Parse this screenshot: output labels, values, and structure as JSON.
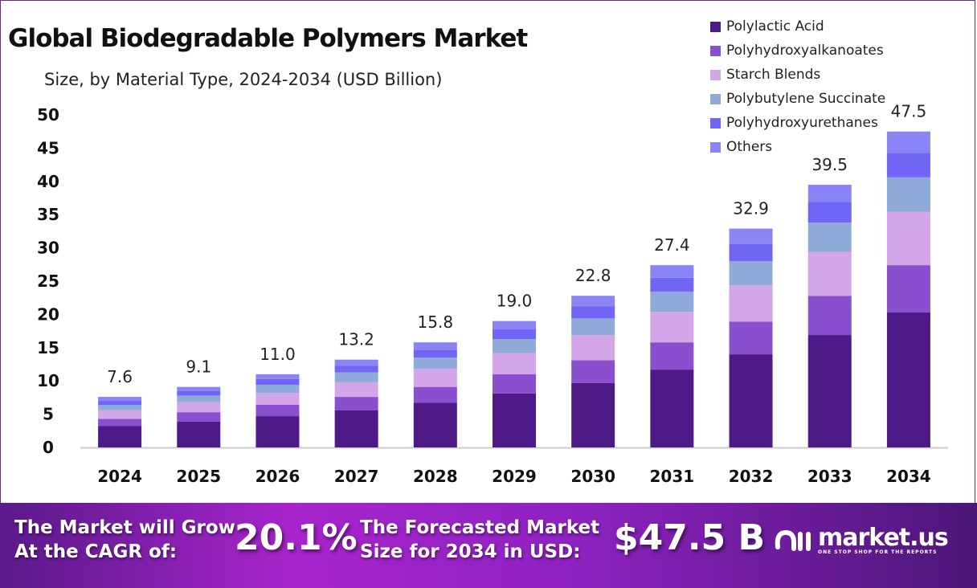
{
  "chart_data": {
    "type": "bar",
    "stacked": true,
    "title": "Global Biodegradable Polymers Market",
    "subtitle": "Size, by Material Type, 2024-2034 (USD Billion)",
    "categories": [
      "2024",
      "2025",
      "2026",
      "2027",
      "2028",
      "2029",
      "2030",
      "2031",
      "2032",
      "2033",
      "2034"
    ],
    "totals": [
      7.6,
      9.1,
      11.0,
      13.2,
      15.8,
      19.0,
      22.8,
      27.4,
      32.9,
      39.5,
      47.5
    ],
    "total_labels": [
      "7.6",
      "9.1",
      "11.0",
      "13.2",
      "15.8",
      "19.0",
      "22.8",
      "27.4",
      "32.9",
      "39.5",
      "47.5"
    ],
    "series": [
      {
        "name": "Polylactic Acid",
        "color": "#4e1a87",
        "values": [
          3.2,
          3.9,
          4.7,
          5.6,
          6.7,
          8.1,
          9.7,
          11.7,
          14.0,
          16.9,
          20.3
        ]
      },
      {
        "name": "Polyhydroxyalkanoates",
        "color": "#8a4fcf",
        "values": [
          1.1,
          1.4,
          1.7,
          2.0,
          2.4,
          2.9,
          3.4,
          4.1,
          4.9,
          5.9,
          7.1
        ]
      },
      {
        "name": "Starch Blends",
        "color": "#d2a6e8",
        "values": [
          1.3,
          1.5,
          1.8,
          2.2,
          2.7,
          3.2,
          3.8,
          4.6,
          5.5,
          6.6,
          8.0
        ]
      },
      {
        "name": "Polybutylene Succinate",
        "color": "#8faad8",
        "values": [
          0.8,
          1.0,
          1.2,
          1.5,
          1.7,
          2.1,
          2.5,
          3.0,
          3.6,
          4.4,
          5.2
        ]
      },
      {
        "name": "Polyhydroxyurethanes",
        "color": "#7165f5",
        "values": [
          0.6,
          0.7,
          0.9,
          1.0,
          1.2,
          1.5,
          1.8,
          2.1,
          2.6,
          3.1,
          3.7
        ]
      },
      {
        "name": "Others",
        "color": "#8a84f5",
        "values": [
          0.6,
          0.6,
          0.7,
          0.9,
          1.1,
          1.2,
          1.6,
          1.9,
          2.3,
          2.6,
          3.2
        ]
      }
    ],
    "ylim": [
      0,
      50
    ],
    "yticks": [
      0,
      5,
      10,
      15,
      20,
      25,
      30,
      35,
      40,
      45,
      50
    ],
    "grid": false,
    "legend": "top-right"
  },
  "banner": {
    "cagr_label_1": "The Market will Grow",
    "cagr_label_2": "At the CAGR of:",
    "cagr_value": "20.1%",
    "forecast_label_1": "The Forecasted Market",
    "forecast_label_2": "Size for 2034 in USD:",
    "forecast_value": "$47.5 B",
    "logo_name": "market.us",
    "logo_tagline": "ONE STOP SHOP FOR THE REPORTS"
  }
}
